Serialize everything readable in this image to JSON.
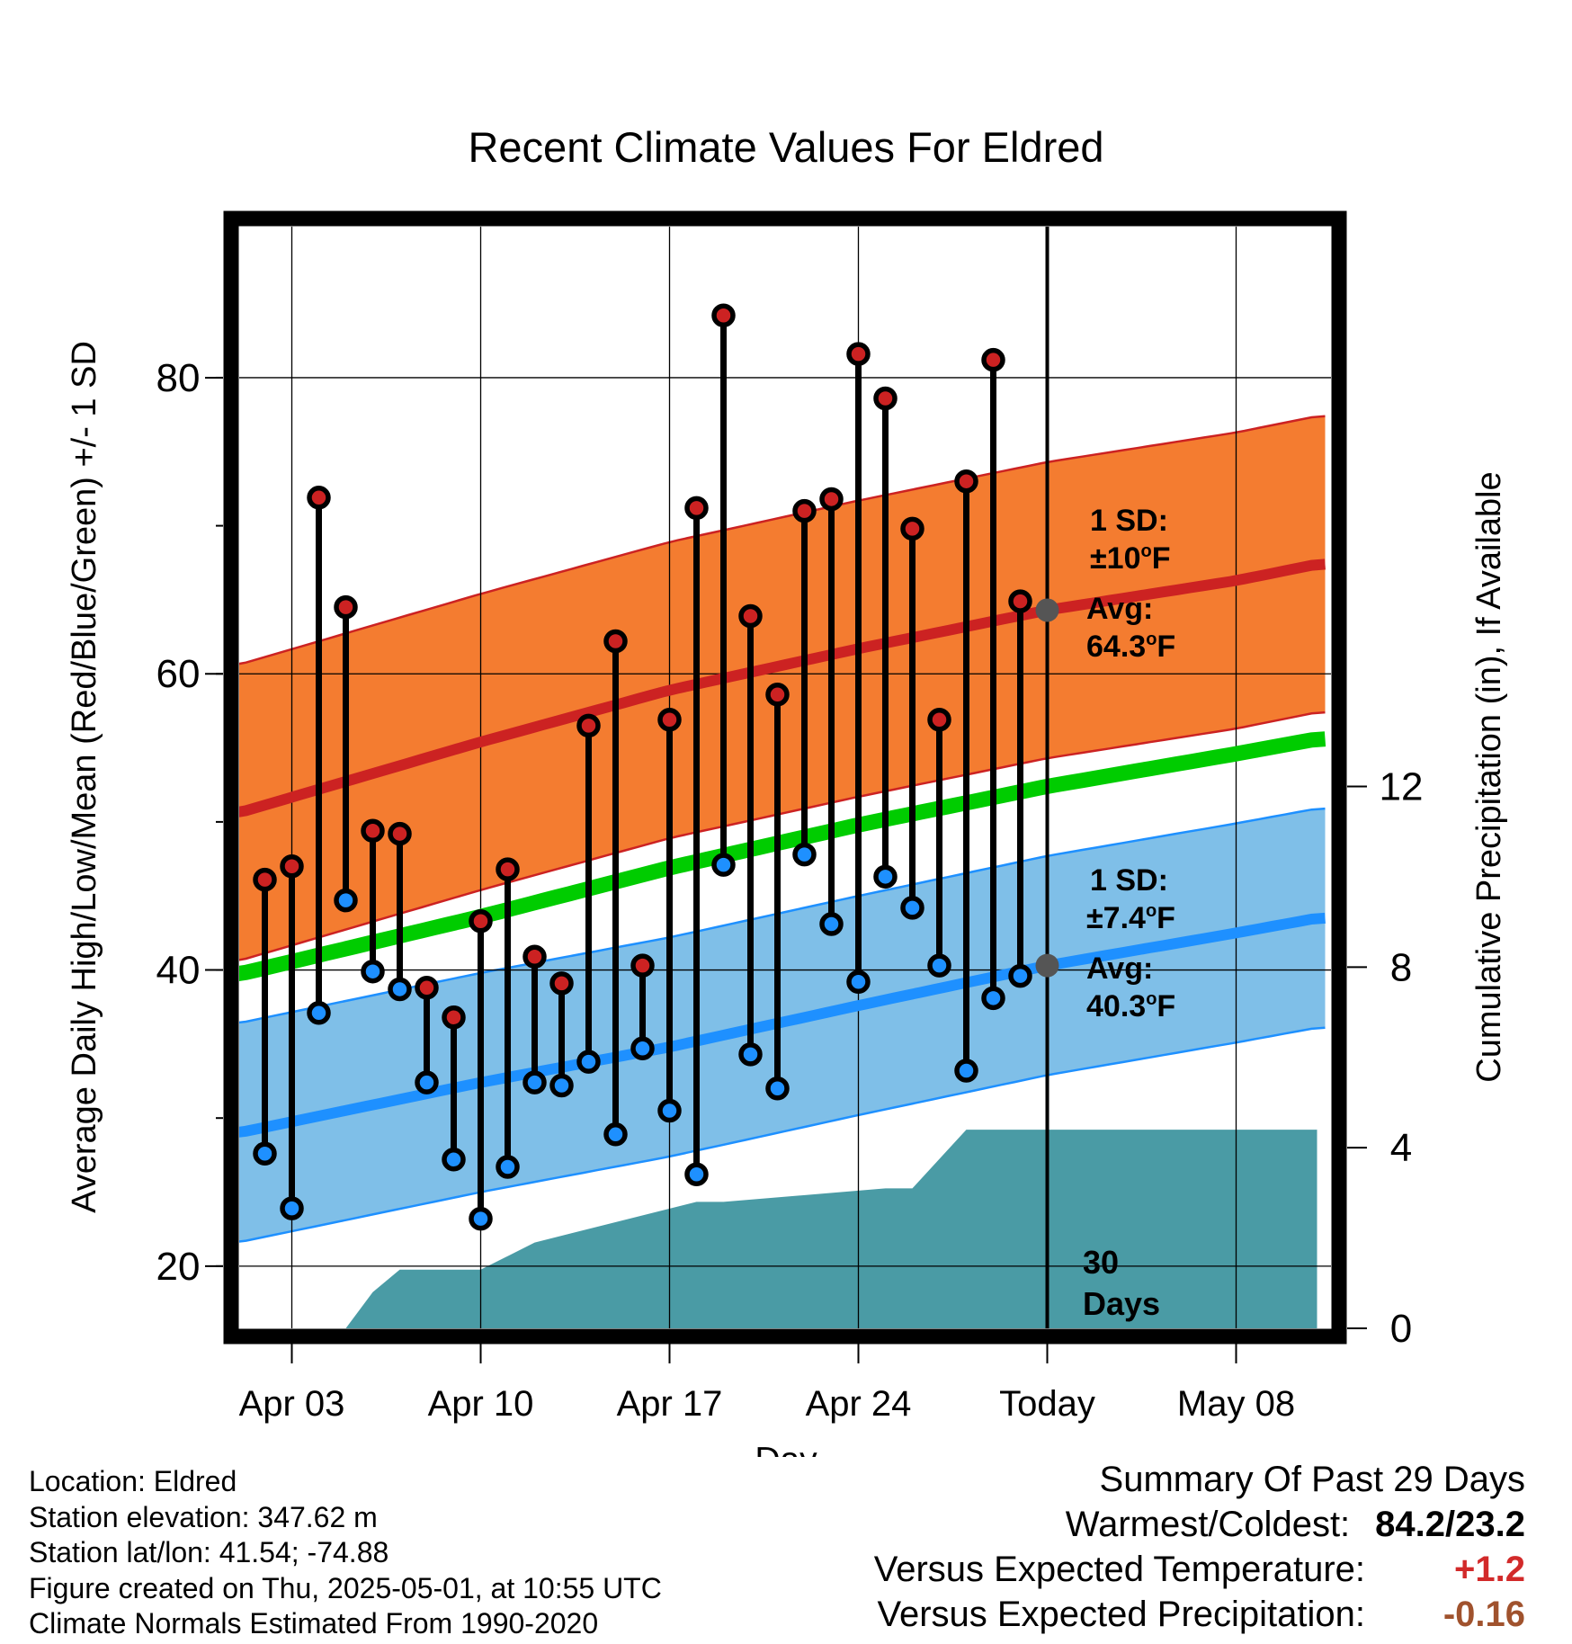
{
  "chart_data": {
    "type": "line",
    "title": "Recent Climate Values For Eldred",
    "xlabel": "Day",
    "ylabel": "Average Daily High/Low/Mean (Red/Blue/Green) +/- 1 SD",
    "y2label": "Cumulative Precipitation (in), If Available",
    "x_tick_labels": [
      "Apr 03",
      "Apr 10",
      "Apr 17",
      "Apr 24",
      "Today",
      "May 08"
    ],
    "y_ticks": [
      "20",
      "40",
      "60",
      "80"
    ],
    "y2_ticks": [
      "0",
      "4",
      "8",
      "12"
    ],
    "ylim": [
      15.8,
      90.2
    ],
    "y2lim": [
      0,
      24.4
    ],
    "grid": true,
    "observed_days": [
      "Apr 02",
      "Apr 03",
      "Apr 04",
      "Apr 05",
      "Apr 06",
      "Apr 07",
      "Apr 08",
      "Apr 09",
      "Apr 10",
      "Apr 11",
      "Apr 12",
      "Apr 13",
      "Apr 14",
      "Apr 15",
      "Apr 16",
      "Apr 17",
      "Apr 18",
      "Apr 19",
      "Apr 20",
      "Apr 21",
      "Apr 22",
      "Apr 23",
      "Apr 24",
      "Apr 25",
      "Apr 26",
      "Apr 27",
      "Apr 28",
      "Apr 29",
      "Apr 30"
    ],
    "observed_high": [
      46.1,
      47.0,
      71.9,
      64.5,
      49.4,
      49.2,
      38.8,
      36.8,
      43.3,
      46.8,
      40.9,
      39.1,
      56.5,
      62.2,
      40.3,
      56.9,
      71.2,
      84.2,
      63.9,
      58.6,
      71.0,
      71.8,
      81.6,
      78.6,
      69.8,
      56.9,
      73.0,
      81.2,
      64.9
    ],
    "observed_low": [
      27.6,
      23.9,
      37.1,
      44.7,
      39.9,
      38.7,
      32.4,
      27.2,
      23.2,
      26.7,
      32.4,
      32.2,
      33.8,
      28.9,
      34.7,
      30.5,
      26.2,
      47.1,
      34.3,
      32.0,
      47.8,
      43.1,
      39.2,
      46.3,
      44.2,
      40.3,
      33.2,
      38.1,
      39.6
    ],
    "normals": {
      "days": [
        "Apr 01",
        "Apr 10",
        "Apr 17",
        "Apr 24",
        "May 01",
        "May 08",
        "May 11"
      ],
      "avg_high": [
        50.6,
        55.4,
        58.9,
        61.7,
        64.3,
        66.3,
        67.4
      ],
      "avg_mean": [
        39.7,
        43.6,
        46.9,
        49.8,
        52.4,
        54.6,
        55.6
      ],
      "avg_low": [
        29.0,
        32.4,
        34.8,
        37.6,
        40.3,
        42.5,
        43.5
      ],
      "high_sd": 10,
      "low_sd": 7.4
    },
    "precip_cumulative": {
      "days": [
        "Apr 01",
        "Apr 05",
        "Apr 06",
        "Apr 07",
        "Apr 08",
        "Apr 09",
        "Apr 10",
        "Apr 11",
        "Apr 12",
        "Apr 18",
        "Apr 19",
        "Apr 25",
        "Apr 26",
        "Apr 28",
        "Apr 30",
        "May 11"
      ],
      "values": [
        0,
        0,
        0.8,
        1.3,
        1.3,
        1.3,
        1.3,
        1.6,
        1.9,
        2.8,
        2.8,
        3.1,
        3.1,
        4.4,
        4.4,
        4.4
      ]
    },
    "series_colors": {
      "high": "#cc2222",
      "low": "#1e90ff",
      "mean": "#00cc00",
      "high_band": "#f47c30",
      "low_band": "#7fbfe8",
      "precip": "#4a9ba5",
      "avg_marker": "#555555"
    }
  },
  "annotations": {
    "high_sd_line1": "1 SD:",
    "high_sd_line2": "±10",
    "high_sd_unit": "F",
    "high_avg_line1": "Avg:",
    "high_avg_line2": "64.3",
    "high_avg_unit": "F",
    "low_sd_line1": "1 SD:",
    "low_sd_line2": "±7.4",
    "low_sd_unit": "F",
    "low_avg_line1": "Avg:",
    "low_avg_line2": "40.3",
    "low_avg_unit": "F",
    "degree_symbol": "o",
    "days_count_line1": "30",
    "days_count_line2": "Days"
  },
  "station_info": [
    "Location: Eldred",
    "Station elevation: 347.62 m",
    "Station lat/lon: 41.54; -74.88",
    "Figure created on Thu, 2025-05-01, at 10:55 UTC",
    "Climate Normals Estimated From 1990-2020"
  ],
  "summary": {
    "title": "Summary Of Past 29 Days",
    "warmest_coldest_label": "Warmest/Coldest:",
    "warmest_coldest_value": "84.2/23.2",
    "temp_label": "Versus Expected Temperature:",
    "temp_value": "+1.2",
    "temp_color": "#d22a2a",
    "precip_label": "Versus Expected Precipitation:",
    "precip_value": "-0.16",
    "precip_color": "#a0522d"
  }
}
